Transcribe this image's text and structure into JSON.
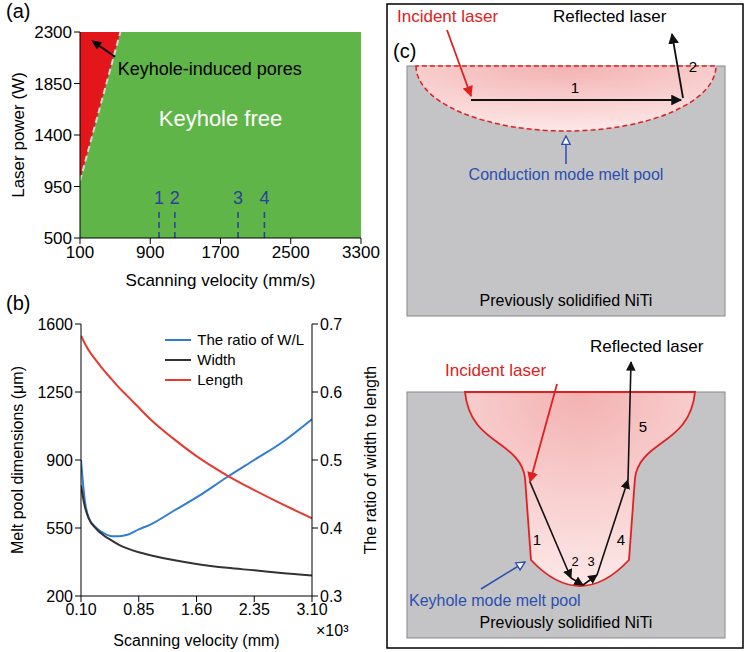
{
  "chart_data": [
    {
      "type": "area",
      "panel_label": "(a)",
      "x_label": "Scanning velocity (mm/s)",
      "y_label": "Laser power (W)",
      "xlim": [
        100,
        3300
      ],
      "xticks": [
        100,
        900,
        1700,
        2500,
        3300
      ],
      "ylim": [
        500,
        2300
      ],
      "yticks": [
        500,
        950,
        1400,
        1850,
        2300
      ],
      "regions": [
        {
          "name": "Keyhole-induced pores",
          "color": "#e3161c"
        },
        {
          "name": "Keyhole free",
          "color": "#5fb548"
        }
      ],
      "boundary": {
        "x": [
          100,
          560
        ],
        "y": [
          1000,
          2300
        ],
        "color": "#d9d9d9",
        "line_style": "dashed"
      },
      "marked_velocities": {
        "x": [
          1000,
          1180,
          1900,
          2200
        ],
        "labels": [
          "1",
          "2",
          "3",
          "4"
        ],
        "y_top": 760,
        "color": "#2b3f9e",
        "line_style": "dashed"
      }
    },
    {
      "type": "line",
      "panel_label": "(b)",
      "x_label": "Scanning velocity (mm)",
      "x_multiplier": "×10³",
      "y_label": "Melt pool dimensions (μm)",
      "y2_label": "The ratio of width to length",
      "x": [
        0.1,
        0.15,
        0.2,
        0.3,
        0.4,
        0.5,
        0.6,
        0.7,
        0.85,
        1.0,
        1.3,
        1.6,
        2.0,
        2.35,
        2.7,
        3.1
      ],
      "xlim": [
        0.1,
        3.1
      ],
      "xticks": [
        {
          "value": 0.1,
          "label": "0.10"
        },
        0.85,
        {
          "value": 1.6,
          "label": "1.60"
        },
        2.35,
        {
          "value": 3.1,
          "label": "3.10"
        }
      ],
      "ylim": [
        200,
        1600
      ],
      "yticks": [
        200,
        550,
        900,
        1250,
        1600
      ],
      "y2lim": [
        0.3,
        0.7
      ],
      "y2ticks": [
        0.3,
        0.4,
        0.5,
        0.6,
        0.7
      ],
      "legend": "upper right",
      "series": [
        {
          "name": "The ratio of W/L",
          "color": "#2e7dd1",
          "axis": "y2",
          "values": [
            0.5,
            0.44,
            0.415,
            0.4,
            0.392,
            0.388,
            0.388,
            0.39,
            0.398,
            0.405,
            0.425,
            0.445,
            0.475,
            0.5,
            0.525,
            0.56
          ]
        },
        {
          "name": "Width",
          "color": "#333333",
          "values": [
            770,
            660,
            600,
            545,
            510,
            485,
            462,
            445,
            425,
            410,
            385,
            365,
            345,
            332,
            318,
            305
          ]
        },
        {
          "name": "Length",
          "color": "#e8392e",
          "values": [
            1540,
            1500,
            1465,
            1410,
            1360,
            1315,
            1270,
            1230,
            1170,
            1110,
            1010,
            920,
            820,
            745,
            675,
            600
          ]
        }
      ]
    }
  ],
  "diagram": {
    "panel_label": "(c)",
    "conduction": {
      "incident": "Incident laser",
      "reflected": "Reflected laser",
      "pool": "Conduction mode melt pool",
      "substrate": "Previously solidified NiTi",
      "paths": [
        "1",
        "2"
      ]
    },
    "keyhole": {
      "incident": "Incident laser",
      "reflected": "Reflected laser",
      "pool": "Keyhole mode melt pool",
      "substrate": "Previously solidified NiTi",
      "paths": [
        "1",
        "2",
        "3",
        "4",
        "5"
      ]
    }
  }
}
